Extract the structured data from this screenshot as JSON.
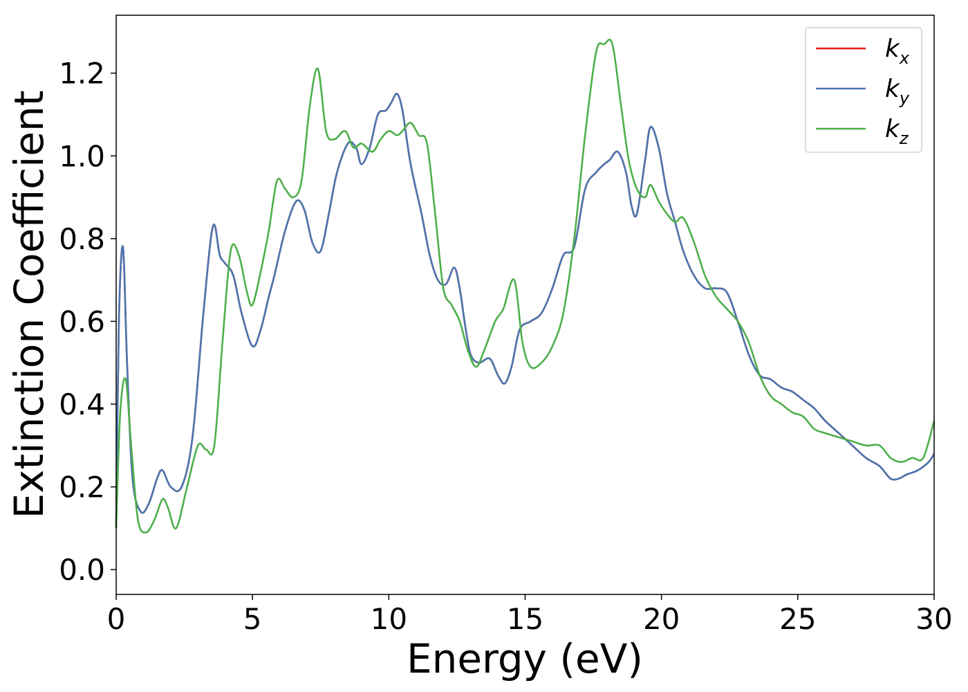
{
  "chart_data": {
    "type": "line",
    "title": "",
    "xlabel": "Energy (eV)",
    "ylabel": "Extinction Coefficient",
    "xlim": [
      0,
      30
    ],
    "ylim": [
      -0.06,
      1.34
    ],
    "xticks": [
      0,
      5,
      10,
      15,
      20,
      25,
      30
    ],
    "yticks": [
      0.0,
      0.2,
      0.4,
      0.6,
      0.8,
      1.0,
      1.2
    ],
    "grid": false,
    "legend_position": "top-right",
    "series": [
      {
        "name": "k",
        "sub": "x",
        "color": "#e41a1c",
        "x": [
          0,
          0.1,
          0.25,
          0.4,
          0.6,
          0.9,
          1.2,
          1.5,
          1.7,
          2.0,
          2.4,
          2.8,
          3.2,
          3.55,
          3.8,
          4.0,
          4.3,
          4.6,
          5.0,
          5.3,
          5.6,
          5.8,
          6.2,
          6.6,
          6.9,
          7.2,
          7.5,
          7.8,
          8.1,
          8.5,
          8.8,
          9.0,
          9.3,
          9.6,
          9.9,
          10.1,
          10.3,
          10.5,
          10.8,
          11.2,
          11.5,
          11.8,
          12.1,
          12.4,
          12.6,
          12.8,
          13.0,
          13.3,
          13.7,
          14.0,
          14.25,
          14.5,
          14.8,
          15.2,
          15.6,
          16.0,
          16.4,
          16.8,
          17.2,
          17.6,
          17.9,
          18.1,
          18.4,
          18.7,
          18.9,
          19.1,
          19.4,
          19.6,
          19.9,
          20.2,
          20.5,
          20.8,
          21.2,
          21.6,
          22.0,
          22.4,
          22.8,
          23.2,
          23.6,
          24.0,
          24.4,
          24.8,
          25.2,
          25.6,
          26.0,
          26.5,
          27.0,
          27.5,
          28.0,
          28.4,
          28.7,
          29.0,
          29.4,
          29.8,
          30.0
        ],
        "y": [
          0.1,
          0.6,
          0.78,
          0.5,
          0.22,
          0.14,
          0.16,
          0.22,
          0.24,
          0.2,
          0.2,
          0.32,
          0.62,
          0.83,
          0.76,
          0.74,
          0.71,
          0.62,
          0.54,
          0.58,
          0.66,
          0.71,
          0.82,
          0.89,
          0.87,
          0.79,
          0.77,
          0.86,
          0.96,
          1.03,
          1.02,
          0.98,
          1.02,
          1.1,
          1.11,
          1.13,
          1.15,
          1.11,
          0.98,
          0.86,
          0.76,
          0.7,
          0.69,
          0.73,
          0.68,
          0.59,
          0.52,
          0.5,
          0.51,
          0.47,
          0.45,
          0.49,
          0.58,
          0.6,
          0.62,
          0.68,
          0.76,
          0.78,
          0.92,
          0.96,
          0.98,
          0.99,
          1.01,
          0.96,
          0.88,
          0.86,
          0.99,
          1.07,
          1.02,
          0.91,
          0.84,
          0.77,
          0.71,
          0.68,
          0.68,
          0.67,
          0.6,
          0.52,
          0.47,
          0.46,
          0.44,
          0.43,
          0.41,
          0.39,
          0.36,
          0.33,
          0.3,
          0.27,
          0.25,
          0.22,
          0.22,
          0.23,
          0.24,
          0.26,
          0.28
        ]
      },
      {
        "name": "k",
        "sub": "y",
        "color": "#4a76b0",
        "x": [
          0,
          0.1,
          0.25,
          0.4,
          0.6,
          0.9,
          1.2,
          1.5,
          1.7,
          2.0,
          2.4,
          2.8,
          3.2,
          3.55,
          3.8,
          4.0,
          4.3,
          4.6,
          5.0,
          5.3,
          5.6,
          5.8,
          6.2,
          6.6,
          6.9,
          7.2,
          7.5,
          7.8,
          8.1,
          8.5,
          8.8,
          9.0,
          9.3,
          9.6,
          9.9,
          10.1,
          10.3,
          10.5,
          10.8,
          11.2,
          11.5,
          11.8,
          12.1,
          12.4,
          12.6,
          12.8,
          13.0,
          13.3,
          13.7,
          14.0,
          14.25,
          14.5,
          14.8,
          15.2,
          15.6,
          16.0,
          16.4,
          16.8,
          17.2,
          17.6,
          17.9,
          18.1,
          18.4,
          18.7,
          18.9,
          19.1,
          19.4,
          19.6,
          19.9,
          20.2,
          20.5,
          20.8,
          21.2,
          21.6,
          22.0,
          22.4,
          22.8,
          23.2,
          23.6,
          24.0,
          24.4,
          24.8,
          25.2,
          25.6,
          26.0,
          26.5,
          27.0,
          27.5,
          28.0,
          28.4,
          28.7,
          29.0,
          29.4,
          29.8,
          30.0
        ],
        "y": [
          0.1,
          0.6,
          0.78,
          0.5,
          0.22,
          0.14,
          0.16,
          0.22,
          0.24,
          0.2,
          0.2,
          0.32,
          0.62,
          0.83,
          0.76,
          0.74,
          0.71,
          0.62,
          0.54,
          0.58,
          0.66,
          0.71,
          0.82,
          0.89,
          0.87,
          0.79,
          0.77,
          0.86,
          0.96,
          1.03,
          1.02,
          0.98,
          1.02,
          1.1,
          1.11,
          1.13,
          1.15,
          1.11,
          0.98,
          0.86,
          0.76,
          0.7,
          0.69,
          0.73,
          0.68,
          0.59,
          0.52,
          0.5,
          0.51,
          0.47,
          0.45,
          0.49,
          0.58,
          0.6,
          0.62,
          0.68,
          0.76,
          0.78,
          0.92,
          0.96,
          0.98,
          0.99,
          1.01,
          0.96,
          0.88,
          0.86,
          0.99,
          1.07,
          1.02,
          0.91,
          0.84,
          0.77,
          0.71,
          0.68,
          0.68,
          0.67,
          0.6,
          0.52,
          0.47,
          0.46,
          0.44,
          0.43,
          0.41,
          0.39,
          0.36,
          0.33,
          0.3,
          0.27,
          0.25,
          0.22,
          0.22,
          0.23,
          0.24,
          0.26,
          0.28
        ]
      },
      {
        "name": "k",
        "sub": "z",
        "color": "#4daf4a",
        "x": [
          0,
          0.15,
          0.35,
          0.55,
          0.8,
          1.1,
          1.4,
          1.7,
          1.9,
          2.2,
          2.6,
          3.0,
          3.3,
          3.6,
          3.9,
          4.2,
          4.5,
          4.8,
          5.0,
          5.3,
          5.6,
          5.9,
          6.2,
          6.5,
          6.8,
          7.1,
          7.4,
          7.7,
          8.0,
          8.4,
          8.7,
          9.0,
          9.4,
          9.7,
          10.0,
          10.3,
          10.5,
          10.8,
          11.1,
          11.4,
          11.7,
          12.0,
          12.3,
          12.6,
          12.9,
          13.2,
          13.5,
          13.9,
          14.2,
          14.6,
          14.9,
          15.2,
          15.6,
          16.0,
          16.4,
          16.8,
          17.2,
          17.6,
          17.9,
          18.2,
          18.5,
          18.8,
          19.1,
          19.4,
          19.6,
          19.9,
          20.2,
          20.5,
          20.8,
          21.2,
          21.6,
          22.0,
          22.4,
          22.8,
          23.2,
          23.6,
          24.0,
          24.4,
          24.8,
          25.2,
          25.6,
          26.0,
          26.5,
          27.0,
          27.5,
          28.0,
          28.4,
          28.8,
          29.2,
          29.6,
          30.0
        ],
        "y": [
          0.1,
          0.38,
          0.46,
          0.3,
          0.12,
          0.09,
          0.12,
          0.17,
          0.15,
          0.1,
          0.2,
          0.3,
          0.29,
          0.3,
          0.55,
          0.77,
          0.76,
          0.67,
          0.64,
          0.72,
          0.82,
          0.94,
          0.92,
          0.9,
          0.94,
          1.12,
          1.21,
          1.06,
          1.04,
          1.06,
          1.02,
          1.03,
          1.01,
          1.04,
          1.06,
          1.05,
          1.06,
          1.08,
          1.05,
          1.03,
          0.86,
          0.68,
          0.64,
          0.6,
          0.53,
          0.49,
          0.53,
          0.6,
          0.63,
          0.7,
          0.55,
          0.49,
          0.5,
          0.54,
          0.62,
          0.8,
          1.05,
          1.25,
          1.27,
          1.27,
          1.13,
          0.99,
          0.92,
          0.9,
          0.93,
          0.89,
          0.86,
          0.84,
          0.85,
          0.79,
          0.71,
          0.66,
          0.63,
          0.6,
          0.55,
          0.47,
          0.42,
          0.4,
          0.38,
          0.37,
          0.34,
          0.33,
          0.32,
          0.31,
          0.3,
          0.3,
          0.27,
          0.26,
          0.27,
          0.27,
          0.36
        ]
      }
    ]
  }
}
